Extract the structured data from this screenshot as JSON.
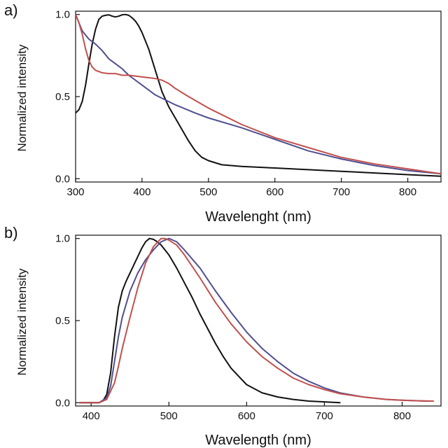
{
  "chart_data": [
    {
      "type": "line",
      "panel_label": "a)",
      "xlabel": "Wavelenght (nm)",
      "ylabel": "Normalized intensity",
      "xlim": [
        300,
        850
      ],
      "ylim": [
        -0.02,
        1.02
      ],
      "xticks": [
        300,
        400,
        500,
        600,
        700,
        800
      ],
      "yticks": [
        0.0,
        0.5,
        1.0
      ],
      "ytick_labels": [
        "0.0",
        "0.5",
        "1.0"
      ],
      "grid": false,
      "legend": "none",
      "series": [
        {
          "color": "#111111",
          "x": [
            300,
            305,
            310,
            315,
            320,
            325,
            330,
            335,
            340,
            345,
            350,
            355,
            360,
            365,
            370,
            375,
            380,
            385,
            390,
            395,
            400,
            410,
            420,
            430,
            440,
            450,
            460,
            470,
            480,
            490,
            500,
            520,
            550,
            600,
            650,
            700,
            750,
            800,
            850
          ],
          "y": [
            0.4,
            0.42,
            0.47,
            0.57,
            0.7,
            0.82,
            0.91,
            0.97,
            0.99,
            0.995,
            0.998,
            0.99,
            0.985,
            0.99,
            0.998,
            1.0,
            0.995,
            0.98,
            0.96,
            0.93,
            0.89,
            0.79,
            0.66,
            0.53,
            0.44,
            0.37,
            0.3,
            0.23,
            0.17,
            0.13,
            0.11,
            0.085,
            0.075,
            0.065,
            0.055,
            0.045,
            0.035,
            0.025,
            0.015
          ]
        },
        {
          "color": "#4f4f90",
          "x": [
            300,
            310,
            320,
            330,
            340,
            350,
            360,
            370,
            380,
            400,
            420,
            450,
            480,
            500,
            550,
            600,
            650,
            700,
            750,
            800,
            850
          ],
          "y": [
            1.0,
            0.9,
            0.85,
            0.82,
            0.78,
            0.73,
            0.7,
            0.67,
            0.63,
            0.57,
            0.51,
            0.45,
            0.4,
            0.37,
            0.31,
            0.24,
            0.17,
            0.12,
            0.08,
            0.05,
            0.03
          ]
        },
        {
          "color": "#c0504d",
          "x": [
            300,
            305,
            310,
            315,
            320,
            325,
            330,
            340,
            350,
            360,
            370,
            380,
            390,
            400,
            410,
            420,
            430,
            440,
            450,
            470,
            500,
            550,
            600,
            650,
            700,
            750,
            800,
            850
          ],
          "y": [
            1.0,
            0.95,
            0.88,
            0.79,
            0.72,
            0.68,
            0.66,
            0.645,
            0.64,
            0.64,
            0.63,
            0.63,
            0.625,
            0.62,
            0.615,
            0.61,
            0.6,
            0.58,
            0.55,
            0.5,
            0.43,
            0.33,
            0.25,
            0.19,
            0.13,
            0.09,
            0.06,
            0.03
          ]
        }
      ]
    },
    {
      "type": "line",
      "panel_label": "b)",
      "xlabel": "Wavelength (nm)",
      "ylabel": "Normalized intensity",
      "xlim": [
        380,
        850
      ],
      "ylim": [
        -0.02,
        1.02
      ],
      "xticks": [
        400,
        500,
        600,
        700,
        800
      ],
      "yticks": [
        0.0,
        0.5,
        1.0
      ],
      "ytick_labels": [
        "0.0",
        "0.5",
        "1.0"
      ],
      "grid": false,
      "legend": "none",
      "series": [
        {
          "color": "#111111",
          "x": [
            385,
            400,
            410,
            415,
            420,
            425,
            430,
            435,
            440,
            445,
            450,
            455,
            460,
            465,
            470,
            475,
            480,
            485,
            490,
            500,
            510,
            520,
            530,
            540,
            550,
            560,
            570,
            580,
            590,
            600,
            620,
            640,
            660,
            680,
            700,
            720
          ],
          "y": [
            0.0,
            0.0,
            0.0,
            0.01,
            0.05,
            0.18,
            0.4,
            0.58,
            0.68,
            0.74,
            0.79,
            0.84,
            0.89,
            0.94,
            0.98,
            1.0,
            0.995,
            0.98,
            0.96,
            0.9,
            0.82,
            0.73,
            0.64,
            0.54,
            0.45,
            0.36,
            0.28,
            0.21,
            0.16,
            0.11,
            0.06,
            0.035,
            0.02,
            0.01,
            0.005,
            0.0
          ]
        },
        {
          "color": "#4f4f90",
          "x": [
            385,
            400,
            410,
            420,
            425,
            430,
            435,
            440,
            450,
            460,
            470,
            480,
            490,
            500,
            510,
            520,
            540,
            560,
            580,
            600,
            620,
            640,
            660,
            680,
            700,
            720,
            750,
            780,
            800,
            830,
            840
          ],
          "y": [
            0.0,
            0.0,
            0.0,
            0.03,
            0.1,
            0.25,
            0.4,
            0.52,
            0.68,
            0.79,
            0.87,
            0.93,
            0.98,
            1.0,
            0.98,
            0.93,
            0.82,
            0.68,
            0.55,
            0.43,
            0.33,
            0.25,
            0.18,
            0.13,
            0.09,
            0.06,
            0.035,
            0.02,
            0.015,
            0.01,
            0.01
          ]
        },
        {
          "color": "#c0504d",
          "x": [
            385,
            400,
            410,
            420,
            430,
            435,
            440,
            450,
            460,
            470,
            480,
            490,
            495,
            500,
            510,
            520,
            540,
            560,
            580,
            600,
            620,
            640,
            660,
            680,
            700,
            720,
            750,
            780,
            800,
            820,
            840
          ],
          "y": [
            0.0,
            0.0,
            0.0,
            0.02,
            0.12,
            0.22,
            0.33,
            0.52,
            0.7,
            0.85,
            0.95,
            1.0,
            1.0,
            0.99,
            0.96,
            0.9,
            0.76,
            0.61,
            0.48,
            0.37,
            0.28,
            0.21,
            0.15,
            0.11,
            0.08,
            0.055,
            0.035,
            0.02,
            0.015,
            0.012,
            0.01
          ]
        }
      ]
    }
  ]
}
